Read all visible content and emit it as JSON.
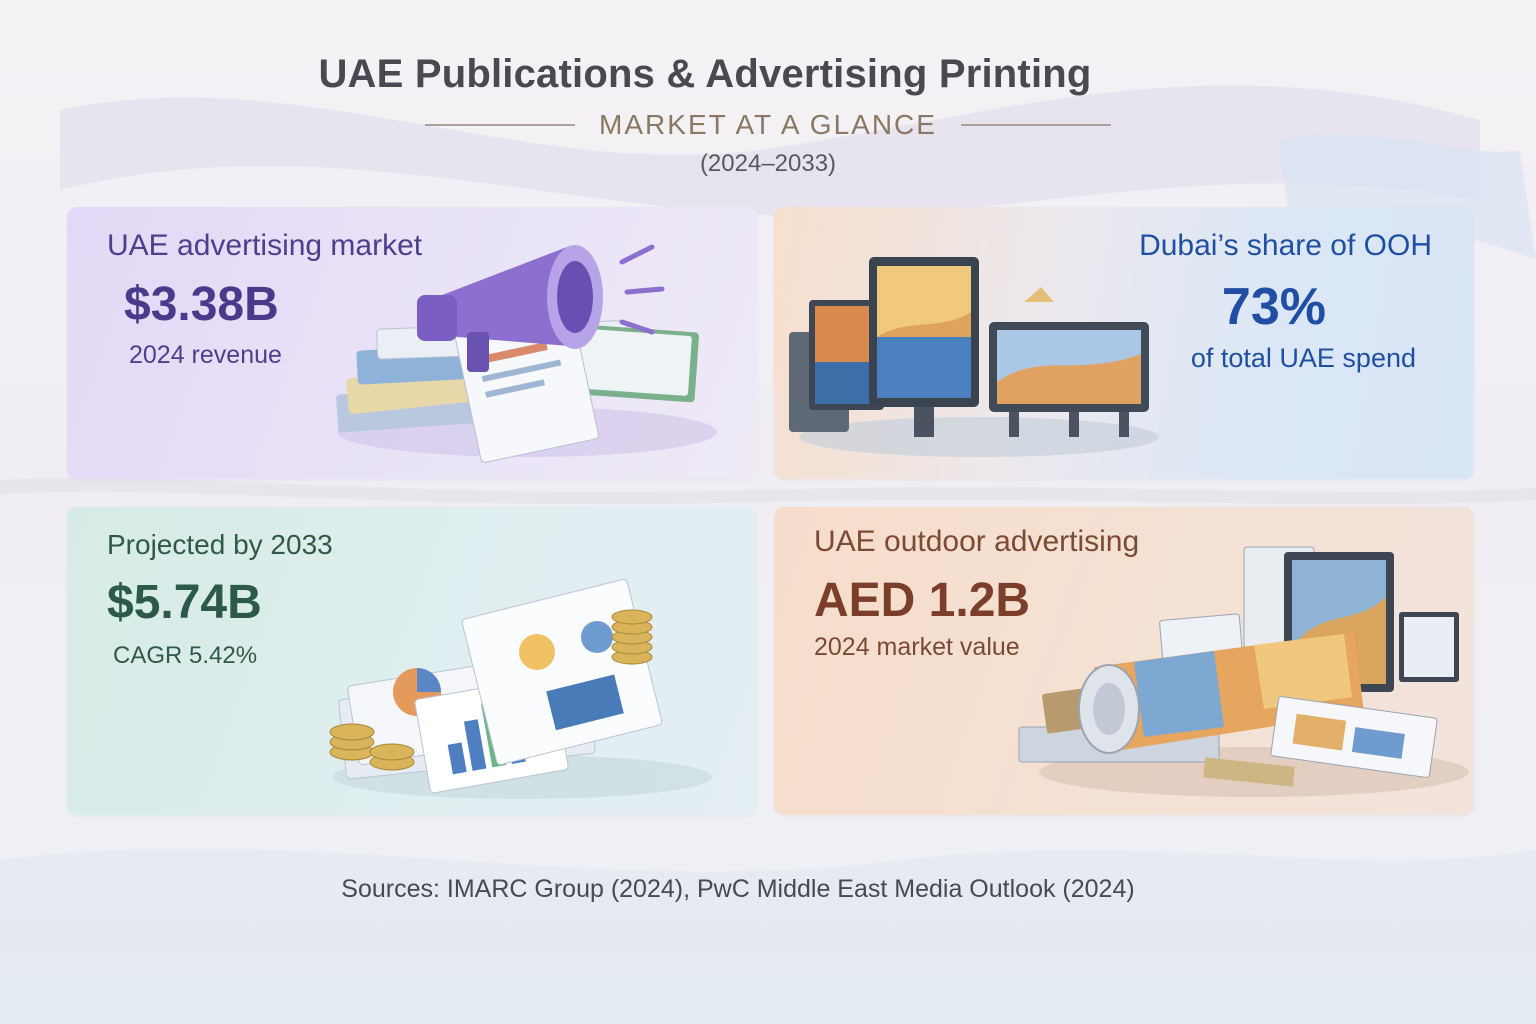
{
  "header": {
    "title": "UAE Publications & Advertising Printing",
    "subtitle": "MARKET AT A GLANCE",
    "years": "(2024–2033)"
  },
  "cards": [
    {
      "label": "UAE advertising market",
      "value": "$3.38B",
      "note": "2024 revenue",
      "illustration": "megaphone-on-magazines-icon",
      "accent": "#4a3a8c"
    },
    {
      "label": "Dubai’s share of OOH",
      "value": "73%",
      "note": "of total UAE spend",
      "illustration": "billboard-screens-icon",
      "accent": "#1f4ea2"
    },
    {
      "label": "Projected by 2033",
      "value": "$5.74B",
      "note": "CAGR 5.42%",
      "illustration": "reports-and-coins-icon",
      "accent": "#2d5a48"
    },
    {
      "label": "UAE outdoor advertising",
      "value": "AED 1.2B",
      "note": "2024 market value",
      "illustration": "rolled-poster-and-prints-icon",
      "accent": "#7b3e2a"
    }
  ],
  "footer": {
    "sources": "Sources: IMARC Group (2024), PwC Middle East Media Outlook (2024)"
  }
}
